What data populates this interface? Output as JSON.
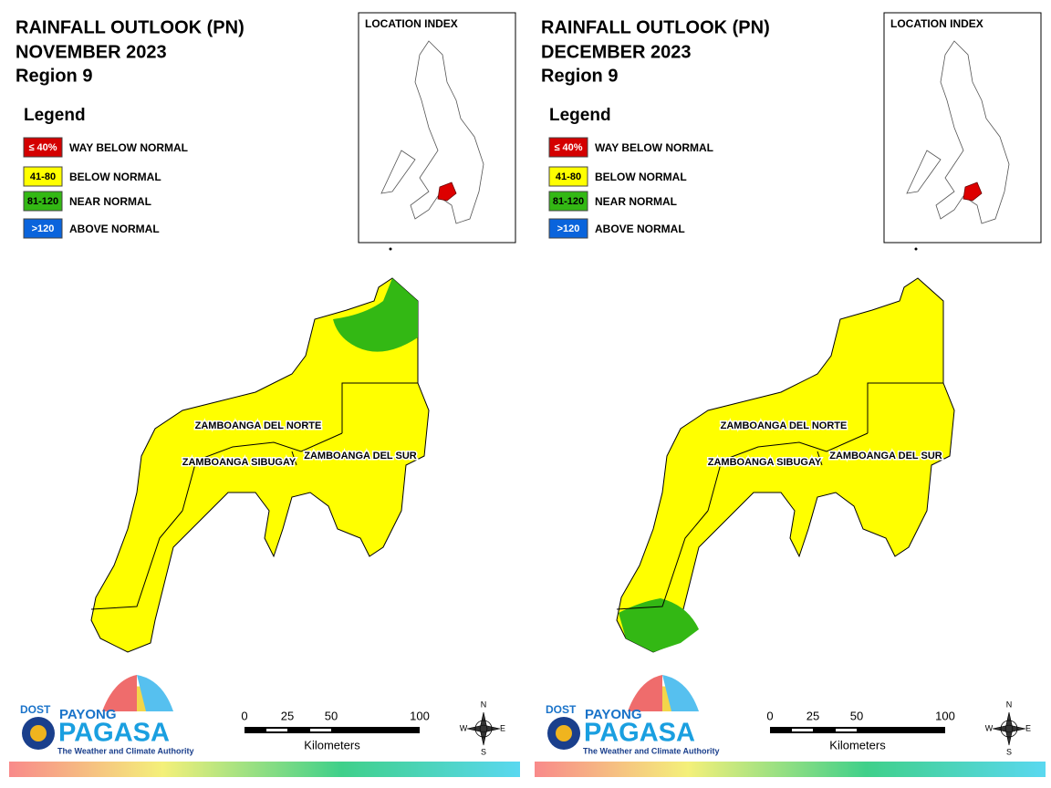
{
  "panels": [
    {
      "title_lines": [
        "RAINFALL OUTLOOK (PN)",
        "NOVEMBER 2023",
        "Region 9"
      ],
      "legend": {
        "title": "Legend",
        "items": [
          {
            "swatch": "≤ 40%",
            "label": "WAY BELOW NORMAL",
            "color": "#d40000"
          },
          {
            "swatch": "41-80",
            "label": "BELOW NORMAL",
            "color": "#ffff00"
          },
          {
            "swatch": "81-120",
            "label": "NEAR NORMAL",
            "color": "#33b814"
          },
          {
            "swatch": ">120",
            "label": "ABOVE NORMAL",
            "color": "#0a64dc"
          }
        ]
      },
      "location_index": "LOCATION INDEX",
      "provinces": [
        "ZAMBOANGA DEL NORTE",
        "ZAMBOANGA SIBUGAY",
        "ZAMBOANGA DEL SUR"
      ],
      "scale": {
        "ticks": [
          "0",
          "25",
          "50",
          "100"
        ],
        "unit": "Kilometers"
      },
      "compass": [
        "N",
        "E",
        "S",
        "W"
      ],
      "logo": {
        "agency": "DOST",
        "brand_top": "PAYONG",
        "brand": "PAGASA",
        "tagline": "The Weather and Climate Authority"
      }
    },
    {
      "title_lines": [
        "RAINFALL OUTLOOK (PN)",
        "DECEMBER 2023",
        "Region 9"
      ],
      "legend": {
        "title": "Legend",
        "items": [
          {
            "swatch": "≤ 40%",
            "label": "WAY BELOW NORMAL",
            "color": "#d40000"
          },
          {
            "swatch": "41-80",
            "label": "BELOW NORMAL",
            "color": "#ffff00"
          },
          {
            "swatch": "81-120",
            "label": "NEAR NORMAL",
            "color": "#33b814"
          },
          {
            "swatch": ">120",
            "label": "ABOVE NORMAL",
            "color": "#0a64dc"
          }
        ]
      },
      "location_index": "LOCATION INDEX",
      "provinces": [
        "ZAMBOANGA DEL NORTE",
        "ZAMBOANGA SIBUGAY",
        "ZAMBOANGA DEL SUR"
      ],
      "scale": {
        "ticks": [
          "0",
          "25",
          "50",
          "100"
        ],
        "unit": "Kilometers"
      },
      "compass": [
        "N",
        "E",
        "S",
        "W"
      ],
      "logo": {
        "agency": "DOST",
        "brand_top": "PAYONG",
        "brand": "PAGASA",
        "tagline": "The Weather and Climate Authority"
      }
    }
  ]
}
